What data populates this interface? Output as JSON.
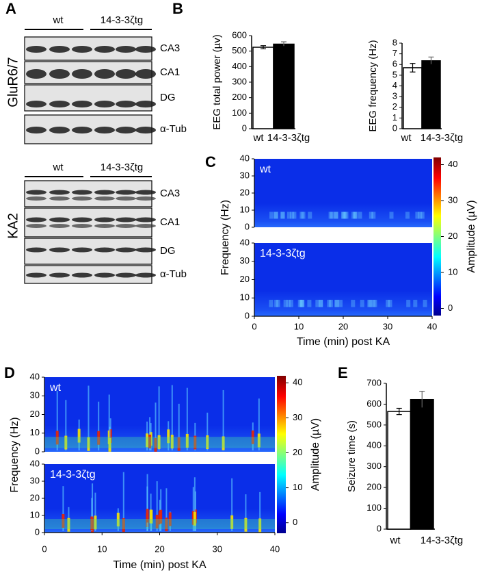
{
  "panel_labels": [
    "A",
    "B",
    "C",
    "D",
    "E"
  ],
  "blots": [
    {
      "title": "GluR6/7",
      "groups": [
        "wt",
        "14-3-3ζtg"
      ],
      "rows": [
        "CA3",
        "CA1",
        "DG",
        "α-Tub"
      ]
    },
    {
      "title": "KA2",
      "groups": [
        "wt",
        "14-3-3ζtg"
      ],
      "rows": [
        "CA3",
        "CA1",
        "DG",
        "α-Tub"
      ]
    }
  ],
  "chart_data": [
    {
      "type": "bar",
      "y_label": "EEG total power (µv)",
      "categories": [
        "wt",
        "14-3-3ζtg"
      ],
      "values": [
        525,
        545
      ],
      "errors": [
        10,
        15
      ],
      "colors": [
        "#ffffff",
        "#000000"
      ],
      "ylim": [
        0,
        600
      ],
      "yticks": [
        0,
        100,
        200,
        300,
        400,
        500,
        600
      ]
    },
    {
      "type": "bar",
      "y_label": "EEG frequency (Hz)",
      "categories": [
        "wt",
        "14-3-3ζtg"
      ],
      "values": [
        5.7,
        6.35
      ],
      "errors": [
        0.4,
        0.35
      ],
      "colors": [
        "#ffffff",
        "#000000"
      ],
      "ylim": [
        0,
        8
      ],
      "yticks": [
        0,
        1,
        2,
        3,
        4,
        5,
        6,
        7,
        8
      ]
    },
    {
      "type": "spectrogram",
      "x_label": "Time (min) post KA",
      "y_label": "Frequency (Hz)",
      "panels": [
        "wt",
        "14-3-3ζtg"
      ],
      "xlim": [
        0,
        40
      ],
      "xticks": [
        0,
        10,
        20,
        30,
        40
      ],
      "ylim": [
        0,
        40
      ],
      "yticks": [
        0,
        10,
        20,
        30,
        40
      ],
      "colorbar": {
        "label": "Amplitude (µV)",
        "lim": [
          -2,
          42
        ],
        "ticks": [
          0,
          10,
          20,
          30,
          40
        ]
      }
    },
    {
      "type": "spectrogram",
      "x_label": "Time (min) post KA",
      "y_label": "Frequency (Hz)",
      "panels": [
        "wt",
        "14-3-3ζtg"
      ],
      "xlim": [
        0,
        40
      ],
      "xticks": [
        0,
        10,
        20,
        30,
        40
      ],
      "ylim": [
        0,
        40
      ],
      "yticks": [
        0,
        10,
        20,
        30,
        40
      ],
      "colorbar": {
        "label": "Amplitude (µV)",
        "lim": [
          -3,
          42
        ],
        "ticks": [
          0,
          10,
          20,
          30,
          40
        ]
      }
    },
    {
      "type": "bar",
      "y_label": "Seizure time (s)",
      "categories": [
        "wt",
        "14-3-3ζtg"
      ],
      "values": [
        565,
        622
      ],
      "errors": [
        15,
        40
      ],
      "colors": [
        "#ffffff",
        "#000000"
      ],
      "ylim": [
        0,
        700
      ],
      "yticks": [
        0,
        100,
        200,
        300,
        400,
        500,
        600,
        700
      ]
    }
  ]
}
